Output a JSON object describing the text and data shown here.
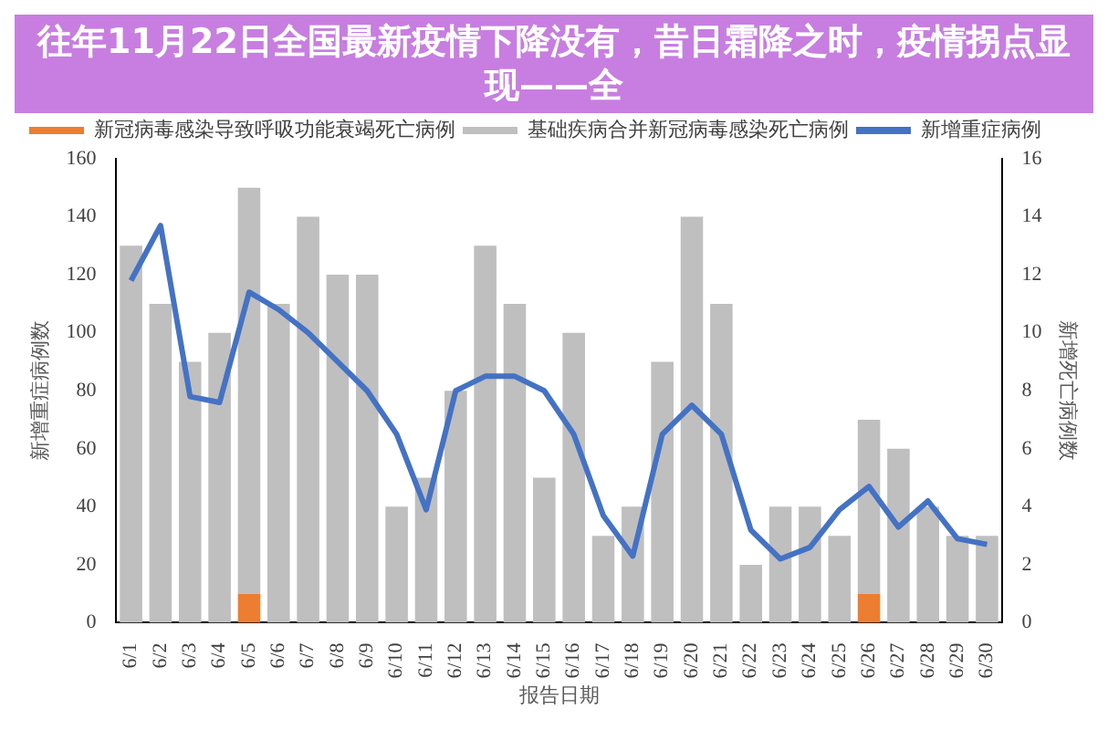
{
  "chart_data": {
    "type": "bar",
    "title": "往年11月22日全国最新疫情下降没有，昔日霜降之时，疫情拐点显现——全",
    "xlabel": "报告日期",
    "ylabel": "新增重症病例数",
    "y2label": "新增死亡病例数",
    "categories": [
      "6/1",
      "6/2",
      "6/3",
      "6/4",
      "6/5",
      "6/6",
      "6/7",
      "6/8",
      "6/9",
      "6/10",
      "6/11",
      "6/12",
      "6/13",
      "6/14",
      "6/15",
      "6/16",
      "6/17",
      "6/18",
      "6/19",
      "6/20",
      "6/21",
      "6/22",
      "6/23",
      "6/24",
      "6/25",
      "6/26",
      "6/27",
      "6/28",
      "6/29",
      "6/30"
    ],
    "stacked": true,
    "series": [
      {
        "name": "新冠病毒感染导致呼吸功能衰竭死亡病例",
        "color": "#ed7d31",
        "axis": "y2",
        "values": [
          0,
          0,
          0,
          0,
          1,
          0,
          0,
          0,
          0,
          0,
          0,
          0,
          0,
          0,
          0,
          0,
          0,
          0,
          0,
          0,
          0,
          0,
          0,
          0,
          0,
          1,
          0,
          0,
          0,
          0
        ]
      },
      {
        "name": "基础疾病合并新冠病毒感染死亡病例",
        "color": "#bfbfbf",
        "axis": "y2",
        "values": [
          13,
          11,
          9,
          10,
          14,
          11,
          14,
          12,
          12,
          4,
          5,
          8,
          13,
          11,
          5,
          10,
          3,
          4,
          9,
          14,
          11,
          2,
          4,
          4,
          3,
          6,
          6,
          4,
          3,
          3
        ]
      },
      {
        "name": "新增重症病例",
        "type": "line",
        "color": "#4472c4",
        "values": [
          118,
          137,
          78,
          76,
          114,
          108,
          100,
          90,
          80,
          65,
          39,
          80,
          85,
          85,
          80,
          65,
          37,
          23,
          65,
          75,
          65,
          32,
          22,
          26,
          39,
          47,
          33,
          42,
          29,
          27
        ]
      }
    ],
    "ylim": [
      0,
      160
    ],
    "yticks": [
      0,
      20,
      40,
      60,
      80,
      100,
      120,
      140,
      160
    ],
    "y2lim": [
      0,
      16
    ],
    "y2ticks": [
      0,
      2,
      4,
      6,
      8,
      10,
      12,
      14,
      16
    ],
    "legend": "top left",
    "grid": false,
    "marker": "none"
  }
}
